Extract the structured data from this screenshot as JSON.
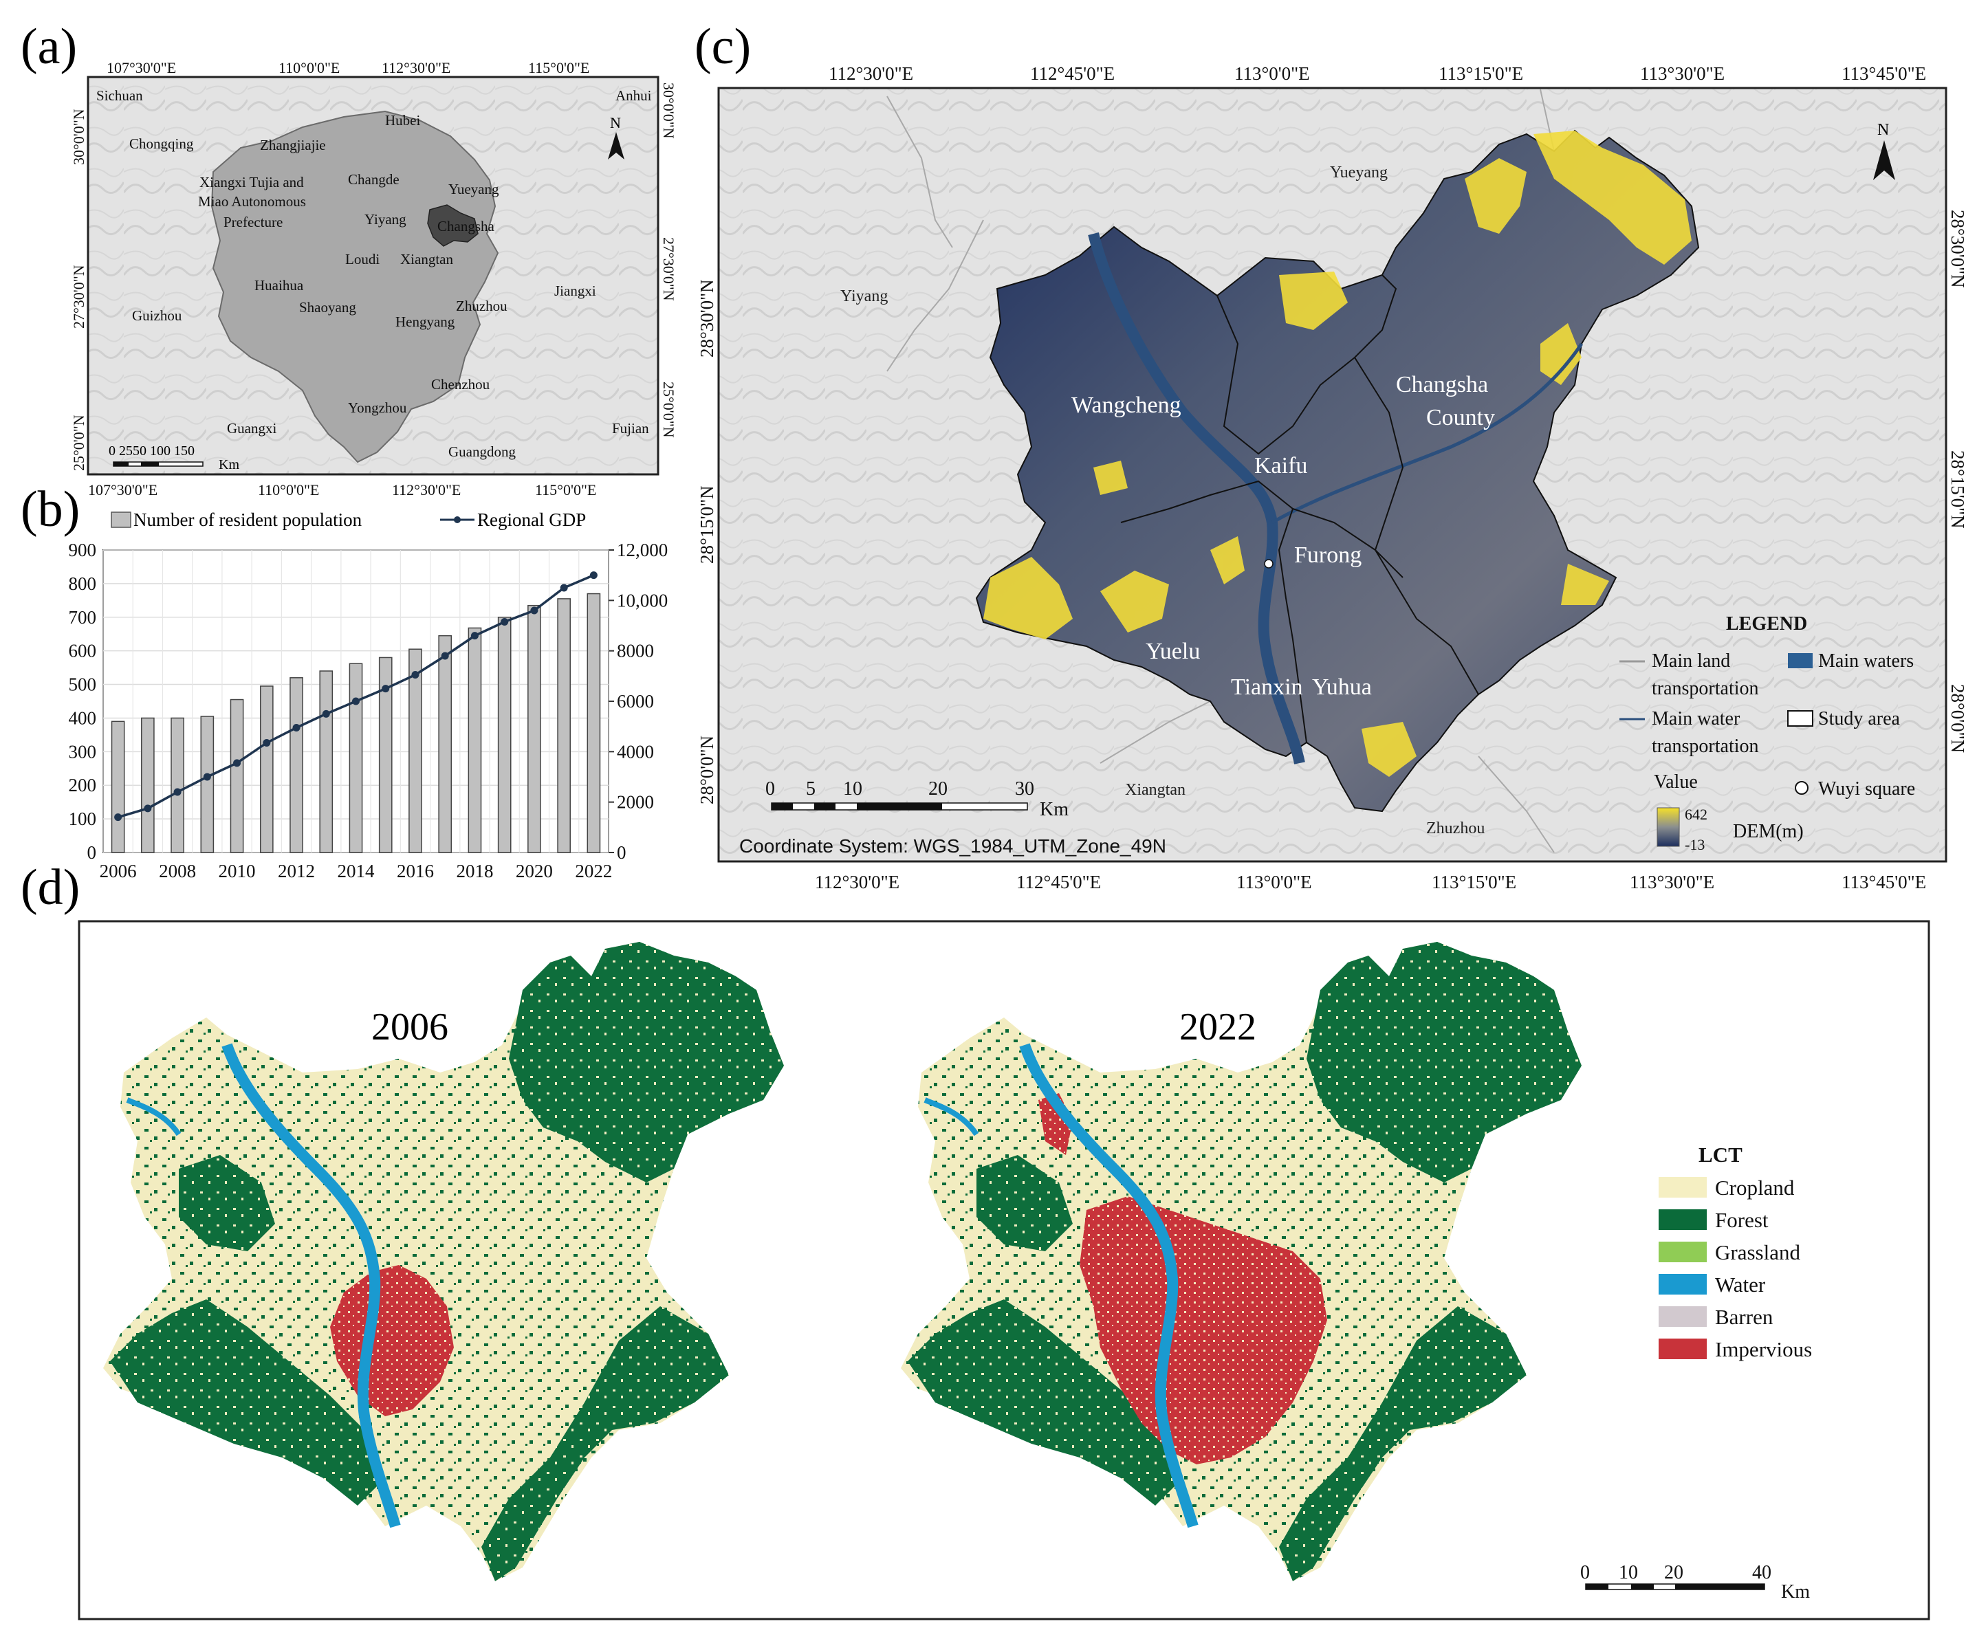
{
  "panels": {
    "a": "(a)",
    "b": "(b)",
    "c": "(c)",
    "d": "(d)"
  },
  "map_a": {
    "top_ticks": [
      "107°30'0\"E",
      "110°0'0\"E",
      "112°30'0\"E",
      "115°0'0\"E"
    ],
    "bottom_ticks": [
      "107°30'0\"E",
      "110°0'0\"E",
      "112°30'0\"E",
      "115°0'0\"E"
    ],
    "left_ticks": [
      "30°0'0\"N",
      "27°30'0\"N",
      "25°0'0\"N"
    ],
    "right_ticks": [
      "30°0'0\"N",
      "27°30'0\"N",
      "25°0'0\"N"
    ],
    "labels": [
      "Sichuan",
      "Hubei",
      "Anhui",
      "Chongqing",
      "Zhangjiajie",
      "Changde",
      "Yueyang",
      "Xiangxi Tujia and",
      "Miao Autonomous",
      "Prefecture",
      "Yiyang",
      "Changsha",
      "Loudi",
      "Xiangtan",
      "Huaihua",
      "Shaoyang",
      "Hengyang",
      "Zhuzhou",
      "Jiangxi",
      "Guizhou",
      "Chenzhou",
      "Yongzhou",
      "Guangxi",
      "Guangdong",
      "Fujian"
    ],
    "north": "N",
    "scale_numbers": "0 2550   100  150",
    "scale_unit": "Km"
  },
  "chart_data": {
    "type": "bar",
    "legend": [
      "Number of resident population",
      "Regional GDP"
    ],
    "categories": [
      2006,
      2007,
      2008,
      2009,
      2010,
      2011,
      2012,
      2013,
      2014,
      2015,
      2016,
      2017,
      2018,
      2019,
      2020,
      2021,
      2022
    ],
    "xticks": [
      "2006",
      "2008",
      "2010",
      "2012",
      "2014",
      "2016",
      "2018",
      "2020",
      "2022"
    ],
    "series": [
      {
        "name": "Number of resident population",
        "axis": "left",
        "kind": "bar",
        "values": [
          390,
          400,
          400,
          405,
          455,
          495,
          520,
          540,
          562,
          580,
          605,
          645,
          668,
          700,
          735,
          755,
          770
        ]
      },
      {
        "name": "Regional GDP",
        "axis": "right",
        "kind": "line",
        "values": [
          1400,
          1750,
          2400,
          3000,
          3550,
          4350,
          4950,
          5500,
          6000,
          6500,
          7050,
          7800,
          8600,
          9150,
          9600,
          10500,
          11000
        ]
      }
    ],
    "ylim_left": [
      0,
      900
    ],
    "yticks_left": [
      "0",
      "100",
      "200",
      "300",
      "400",
      "500",
      "600",
      "700",
      "800",
      "900"
    ],
    "ylim_right": [
      0,
      12000
    ],
    "yticks_right": [
      "0",
      "2000",
      "4000",
      "6000",
      "8000",
      "10,000",
      "12,000"
    ],
    "grid": true,
    "colors": {
      "bar": "#c0c0c0",
      "line": "#1f3550"
    }
  },
  "map_c": {
    "top_ticks": [
      "112°30'0\"E",
      "112°45'0\"E",
      "113°0'0\"E",
      "113°15'0\"E",
      "113°30'0\"E",
      "113°45'0\"E"
    ],
    "bottom_ticks": [
      "112°30'0\"E",
      "112°45'0\"E",
      "113°0'0\"E",
      "113°15'0\"E",
      "113°30'0\"E",
      "113°45'0\"E"
    ],
    "left_ticks": [
      "28°30'0\"N",
      "28°15'0\"N",
      "28°0'0\"N"
    ],
    "right_ticks": [
      "28°30'0\"N",
      "28°15'0\"N",
      "28°0'0\"N"
    ],
    "context_labels": [
      "Yueyang",
      "Yiyang",
      "Xiangtan",
      "Zhuzhou"
    ],
    "district_labels": [
      "Wangcheng",
      "Changsha",
      "County",
      "Kaifu",
      "Furong",
      "Yuelu",
      "Tianxin",
      "Yuhua"
    ],
    "north": "N",
    "scale_numbers": [
      "0",
      "5",
      "10",
      "20",
      "30"
    ],
    "scale_unit": "Km",
    "coord_system": "Coordinate System: WGS_1984_UTM_Zone_49N",
    "legend": {
      "title": "LEGEND",
      "land_transport": [
        "Main land",
        "transportation"
      ],
      "main_waters": "Main waters",
      "water_transport": [
        "Main water",
        "transportation"
      ],
      "study_area": "Study area",
      "value": "Value",
      "wuyi": "Wuyi square",
      "dem_max": "642",
      "dem_min": "-13",
      "dem_unit": "DEM(m)"
    },
    "colors": {
      "dem_low": "#1c2e5e",
      "dem_mid": "#8a8e8f",
      "dem_high": "#f5e02a",
      "water": "#2b5f94"
    }
  },
  "map_d": {
    "years": [
      "2006",
      "2022"
    ],
    "legend_title": "LCT",
    "classes": [
      {
        "name": "Cropland",
        "color": "#f5efc2"
      },
      {
        "name": "Forest",
        "color": "#0b6b3a"
      },
      {
        "name": "Grassland",
        "color": "#90cc55"
      },
      {
        "name": "Water",
        "color": "#1a9ad0"
      },
      {
        "name": "Barren",
        "color": "#d2c9cf"
      },
      {
        "name": "Impervious",
        "color": "#c8333a"
      }
    ],
    "scale_numbers": [
      "0",
      "10",
      "20",
      "40"
    ],
    "scale_unit": "Km"
  }
}
